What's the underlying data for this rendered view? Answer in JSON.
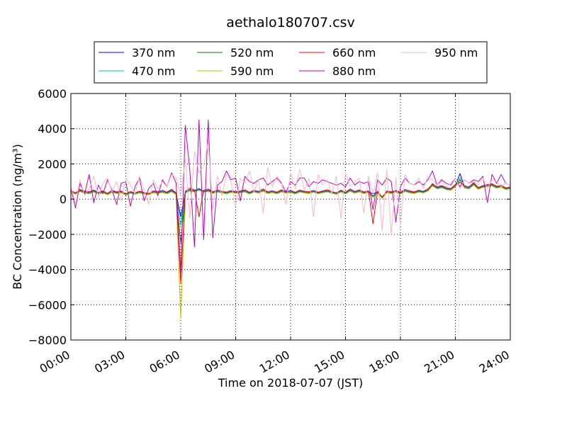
{
  "chart_data": {
    "type": "line",
    "title": "aethalo180707.csv",
    "xlabel": "Time on 2018-07-07 (JST)",
    "ylabel": "BC Concentration (ng/m³)",
    "x_range": [
      "00:00",
      "24:00"
    ],
    "x_ticks": [
      "00:00",
      "03:00",
      "06:00",
      "09:00",
      "12:00",
      "15:00",
      "18:00",
      "21:00",
      "24:00"
    ],
    "ylim": [
      -8000,
      6000
    ],
    "y_ticks": [
      -8000,
      -6000,
      -4000,
      -2000,
      0,
      2000,
      4000,
      6000
    ],
    "y_tick_labels": [
      "−8000",
      "−6000",
      "−4000",
      "−2000",
      "0",
      "2000",
      "4000",
      "6000"
    ],
    "grid": true,
    "legend_position": "top, above plot, 4 columns",
    "x_sampling": "every 15 minutes (00:00 to 24:00, 97 points); approximate values read from plot",
    "series": [
      {
        "name": "370 nm",
        "color": "#0000ff",
        "values": [
          450,
          320,
          500,
          410,
          380,
          470,
          350,
          420,
          300,
          460,
          380,
          420,
          260,
          390,
          330,
          410,
          350,
          280,
          420,
          390,
          450,
          360,
          500,
          320,
          -1000,
          400,
          550,
          480,
          600,
          450,
          520,
          380,
          470,
          410,
          360,
          440,
          390,
          420,
          480,
          350,
          460,
          400,
          520,
          380,
          430,
          360,
          480,
          400,
          450,
          350,
          470,
          410,
          380,
          450,
          360,
          420,
          480,
          390,
          330,
          460,
          350,
          520,
          400,
          480,
          370,
          430,
          300,
          410,
          120,
          420,
          380,
          450,
          350,
          500,
          420,
          380,
          460,
          410,
          520,
          880,
          650,
          720,
          600,
          560,
          780,
          1450,
          700,
          650,
          880,
          620,
          720,
          780,
          820,
          680,
          740,
          600,
          650
        ]
      },
      {
        "name": "470 nm",
        "color": "#00c0b0",
        "values": [
          420,
          350,
          480,
          380,
          360,
          450,
          330,
          400,
          320,
          430,
          360,
          400,
          280,
          370,
          310,
          390,
          330,
          300,
          400,
          370,
          430,
          340,
          470,
          300,
          -1500,
          380,
          520,
          450,
          560,
          430,
          490,
          360,
          450,
          390,
          340,
          420,
          370,
          400,
          460,
          330,
          440,
          380,
          500,
          360,
          410,
          340,
          460,
          380,
          430,
          330,
          450,
          390,
          360,
          430,
          340,
          400,
          460,
          370,
          310,
          440,
          330,
          500,
          380,
          460,
          350,
          410,
          200,
          390,
          150,
          400,
          360,
          430,
          330,
          480,
          400,
          360,
          440,
          390,
          500,
          820,
          620,
          690,
          580,
          540,
          750,
          1200,
          680,
          630,
          850,
          600,
          700,
          760,
          800,
          660,
          720,
          580,
          630
        ]
      },
      {
        "name": "520 nm",
        "color": "#008000",
        "values": [
          380,
          300,
          450,
          350,
          320,
          420,
          300,
          380,
          280,
          400,
          330,
          380,
          250,
          350,
          290,
          370,
          310,
          270,
          380,
          350,
          400,
          320,
          440,
          280,
          -2500,
          360,
          480,
          420,
          520,
          400,
          460,
          340,
          420,
          370,
          320,
          400,
          350,
          380,
          430,
          310,
          420,
          360,
          470,
          340,
          390,
          320,
          430,
          360,
          400,
          310,
          420,
          370,
          340,
          410,
          320,
          380,
          430,
          350,
          290,
          420,
          310,
          470,
          360,
          430,
          330,
          390,
          150,
          370,
          100,
          380,
          340,
          410,
          310,
          450,
          380,
          340,
          420,
          370,
          480,
          780,
          600,
          660,
          560,
          520,
          720,
          1100,
          650,
          600,
          820,
          580,
          680,
          730,
          770,
          640,
          700,
          560,
          610
        ]
      },
      {
        "name": "590 nm",
        "color": "#c0c000",
        "values": [
          400,
          280,
          430,
          330,
          300,
          400,
          280,
          360,
          250,
          380,
          310,
          360,
          230,
          330,
          270,
          350,
          290,
          250,
          360,
          330,
          380,
          300,
          420,
          260,
          -6800,
          340,
          460,
          400,
          500,
          380,
          440,
          320,
          400,
          350,
          300,
          380,
          330,
          360,
          410,
          290,
          400,
          340,
          450,
          320,
          370,
          300,
          410,
          340,
          380,
          290,
          400,
          350,
          320,
          390,
          300,
          360,
          410,
          330,
          270,
          400,
          290,
          450,
          340,
          410,
          310,
          370,
          100,
          350,
          50,
          360,
          320,
          390,
          290,
          430,
          360,
          320,
          400,
          350,
          460,
          750,
          580,
          640,
          540,
          500,
          700,
          1050,
          630,
          580,
          800,
          560,
          660,
          710,
          750,
          620,
          680,
          540,
          590
        ]
      },
      {
        "name": "660 nm",
        "color": "#ff0000",
        "values": [
          500,
          350,
          550,
          450,
          420,
          520,
          380,
          470,
          330,
          510,
          420,
          470,
          290,
          430,
          360,
          450,
          380,
          310,
          470,
          430,
          500,
          400,
          560,
          350,
          -4800,
          450,
          620,
          530,
          -1000,
          500,
          580,
          420,
          520,
          450,
          400,
          490,
          430,
          470,
          530,
          390,
          510,
          440,
          580,
          420,
          480,
          400,
          530,
          440,
          500,
          390,
          520,
          450,
          420,
          500,
          400,
          470,
          530,
          430,
          360,
          510,
          390,
          580,
          440,
          530,
          410,
          480,
          -1400,
          460,
          80,
          470,
          420,
          500,
          390,
          560,
          470,
          420,
          510,
          450,
          580,
          850,
          700,
          770,
          650,
          600,
          830,
          950,
          760,
          700,
          940,
          660,
          770,
          830,
          870,
          730,
          790,
          640,
          700
        ]
      },
      {
        "name": "880 nm",
        "color": "#c000c0",
        "values": [
          600,
          -500,
          900,
          300,
          1400,
          -200,
          800,
          300,
          1100,
          500,
          -300,
          900,
          1000,
          -400,
          700,
          1200,
          -100,
          600,
          900,
          200,
          1100,
          700,
          1500,
          900,
          -4200,
          4200,
          1600,
          -2700,
          4500,
          -2300,
          4500,
          -2200,
          800,
          1000,
          1600,
          1100,
          1200,
          -100,
          1300,
          1000,
          900,
          1100,
          1200,
          800,
          1000,
          1200,
          900,
          400,
          1000,
          800,
          1200,
          1200,
          700,
          1000,
          900,
          1100,
          1000,
          900,
          800,
          900,
          700,
          1200,
          800,
          1000,
          900,
          1000,
          -600,
          1100,
          800,
          1200,
          1000,
          -1300,
          700,
          1200,
          900,
          800,
          1000,
          800,
          1100,
          1600,
          800,
          1100,
          900,
          800,
          1200,
          700,
          1100,
          900,
          1100,
          1000,
          1300,
          -200,
          1400,
          900,
          1400,
          900,
          800
        ]
      },
      {
        "name": "950 nm",
        "color": "#ffb6c1",
        "values": [
          700,
          -300,
          1100,
          200,
          600,
          1300,
          100,
          900,
          1200,
          400,
          1000,
          -100,
          1200,
          800,
          300,
          1300,
          500,
          -300,
          1100,
          600,
          1000,
          700,
          1400,
          1200,
          200,
          2300,
          -1100,
          2700,
          1500,
          1900,
          3300,
          -600,
          1300,
          200,
          1400,
          1000,
          -400,
          1200,
          900,
          1600,
          400,
          1100,
          -800,
          1800,
          700,
          1300,
          1000,
          -300,
          1500,
          600,
          1700,
          500,
          1200,
          -1000,
          1400,
          800,
          1100,
          300,
          1300,
          -1100,
          1500,
          700,
          1000,
          1200,
          -800,
          1300,
          300,
          1500,
          -1800,
          1700,
          -2000,
          1200,
          -1500,
          1400,
          900,
          800,
          1200,
          600,
          1300,
          1100,
          800,
          1000,
          700,
          900,
          1200,
          600,
          1100,
          900,
          1000,
          800,
          1200,
          600,
          1100,
          1000,
          700,
          900,
          800
        ]
      }
    ]
  }
}
